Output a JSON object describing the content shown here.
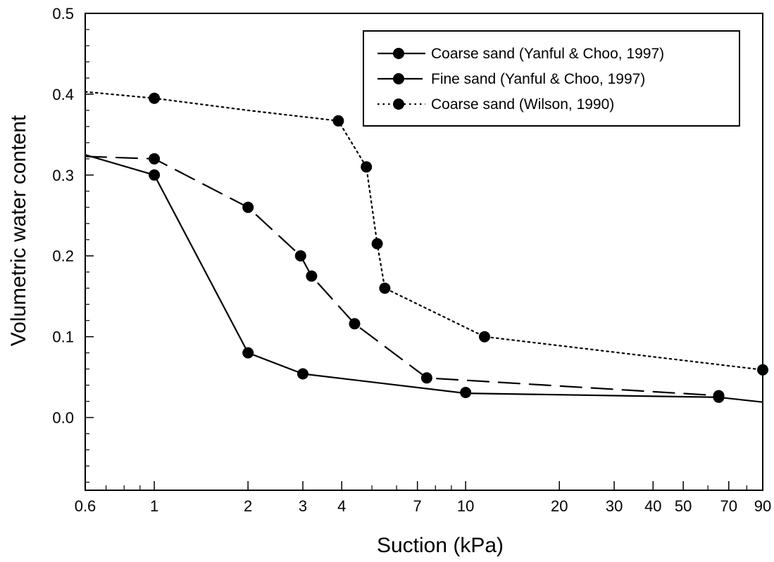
{
  "chart_data": {
    "type": "line",
    "title": "",
    "xlabel": "Suction (kPa)",
    "ylabel": "Volumetric water content",
    "xscale": "log",
    "xlim": [
      0.6,
      90
    ],
    "ylim": [
      -0.09,
      0.5
    ],
    "xticks": [
      0.6,
      1,
      2,
      3,
      4,
      7,
      10,
      20,
      30,
      40,
      50,
      70,
      90
    ],
    "xtick_labels": [
      "0.6",
      "1",
      "2",
      "3",
      "4",
      "7",
      "10",
      "20",
      "30",
      "40",
      "50",
      "70",
      "90"
    ],
    "xminor_ticks": [
      0.7,
      0.8,
      0.9,
      5,
      6,
      8,
      9,
      60,
      80
    ],
    "yticks": [
      0.0,
      0.1,
      0.2,
      0.3,
      0.4,
      0.5
    ],
    "ytick_labels": [
      "0.0",
      "0.1",
      "0.2",
      "0.3",
      "0.4",
      "0.5"
    ],
    "yminor_step": 0.02,
    "grid": false,
    "legend_position": "top-right",
    "series": [
      {
        "name": "Coarse sand (Yanful & Choo, 1997)",
        "style": "solid",
        "line": [
          [
            0.6,
            0.325
          ],
          [
            1.0,
            0.3
          ],
          [
            2.0,
            0.08
          ],
          [
            3.0,
            0.054
          ],
          [
            10.0,
            0.03
          ],
          [
            65.0,
            0.025
          ],
          [
            90.0,
            0.019
          ]
        ],
        "markers": [
          [
            1.0,
            0.3
          ],
          [
            2.0,
            0.08
          ],
          [
            3.0,
            0.054
          ],
          [
            10.0,
            0.031
          ],
          [
            65.0,
            0.025
          ]
        ]
      },
      {
        "name": "Fine sand (Yanful & Choo, 1997)",
        "style": "dashed",
        "line": [
          [
            0.6,
            0.323
          ],
          [
            1.0,
            0.32
          ],
          [
            2.0,
            0.26
          ],
          [
            2.95,
            0.2
          ],
          [
            3.2,
            0.175
          ],
          [
            4.4,
            0.116
          ],
          [
            7.5,
            0.049
          ],
          [
            65.0,
            0.027
          ]
        ],
        "markers": [
          [
            1.0,
            0.32
          ],
          [
            2.0,
            0.26
          ],
          [
            2.95,
            0.2
          ],
          [
            3.2,
            0.175
          ],
          [
            4.4,
            0.116
          ],
          [
            7.5,
            0.049
          ],
          [
            65.0,
            0.027
          ]
        ]
      },
      {
        "name": "Coarse sand (Wilson, 1990)",
        "style": "dotted",
        "line": [
          [
            0.6,
            0.403
          ],
          [
            1.0,
            0.395
          ],
          [
            2.0,
            0.38
          ],
          [
            3.9,
            0.367
          ],
          [
            4.8,
            0.31
          ],
          [
            5.2,
            0.215
          ],
          [
            5.5,
            0.16
          ],
          [
            11.5,
            0.1
          ],
          [
            90.0,
            0.059
          ]
        ],
        "markers": [
          [
            1.0,
            0.395
          ],
          [
            3.9,
            0.367
          ],
          [
            4.8,
            0.31
          ],
          [
            5.2,
            0.215
          ],
          [
            5.5,
            0.16
          ],
          [
            11.5,
            0.1
          ],
          [
            90.0,
            0.059
          ]
        ]
      }
    ]
  }
}
